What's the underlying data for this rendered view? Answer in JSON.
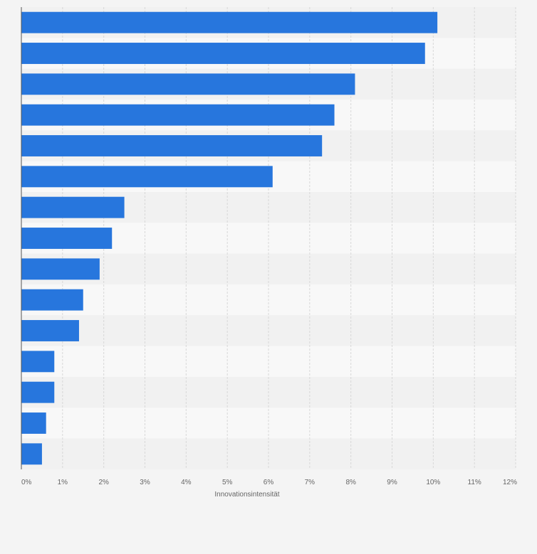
{
  "chart_data": {
    "type": "bar",
    "orientation": "horizontal",
    "values": [
      10.1,
      9.8,
      8.1,
      7.6,
      7.3,
      6.1,
      2.5,
      2.2,
      1.9,
      1.5,
      1.4,
      0.8,
      0.8,
      0.6,
      0.5
    ],
    "x_ticks": [
      "0%",
      "1%",
      "2%",
      "3%",
      "4%",
      "5%",
      "6%",
      "7%",
      "8%",
      "9%",
      "10%",
      "11%",
      "12%"
    ],
    "xlabel": "Innovationsintensität",
    "xlim": [
      0,
      12
    ],
    "grid": true,
    "legend": "none",
    "colors": {
      "bar": "#2776dd",
      "background": "#f4f4f4",
      "band_light": "#f8f8f8",
      "band_dark": "#f1f1f1",
      "grid": "#d8d8d8",
      "axis": "#666666",
      "text": "#666666"
    }
  }
}
